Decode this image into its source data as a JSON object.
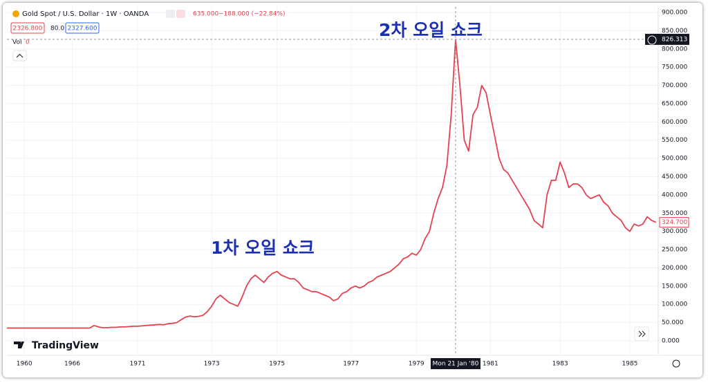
{
  "chart_data": {
    "type": "line",
    "title": "Gold Spot / U.S. Dollar · 1W · OANDA",
    "change": "635.000",
    "change_detail": "−188.000 (−22.84%)",
    "bid": "2326.800",
    "spread": "80.0",
    "ask": "2327.600",
    "volume_label": "Vol",
    "volume": 0,
    "annotations": [
      "2차 오일 쇼크",
      "1차 오일 쇼크"
    ],
    "crosshair": {
      "date": "Mon 21 Jan '80",
      "price": {
        "value": 826.313,
        "label": "826.313"
      }
    },
    "logo": "TradingView",
    "color": "#e5404c",
    "grid": true,
    "last_value_label": "324.700",
    "categories": [
      null,
      null,
      null,
      null,
      "1960",
      null,
      null,
      null,
      null,
      null,
      null,
      null,
      null,
      null,
      null,
      "1966",
      null,
      null,
      null,
      null,
      null,
      null,
      null,
      null,
      null,
      null,
      null,
      null,
      null,
      null,
      "1971",
      null,
      null,
      null,
      null,
      null,
      null,
      null,
      null,
      null,
      null,
      null,
      null,
      null,
      null,
      null,
      null,
      "1973",
      null,
      null,
      null,
      null,
      null,
      null,
      null,
      null,
      null,
      null,
      null,
      null,
      null,
      null,
      "1975",
      null,
      null,
      null,
      null,
      null,
      null,
      null,
      null,
      null,
      null,
      null,
      null,
      null,
      null,
      null,
      null,
      "1977",
      null,
      null,
      null,
      null,
      null,
      null,
      null,
      null,
      null,
      null,
      null,
      null,
      null,
      null,
      "1979",
      null,
      null,
      null,
      null,
      null,
      null,
      null,
      null,
      null,
      null,
      null,
      null,
      null,
      null,
      null,
      null,
      "1981",
      null,
      null,
      null,
      null,
      null,
      null,
      null,
      null,
      null,
      null,
      null,
      null,
      null,
      null,
      null,
      "1983",
      null,
      null,
      null,
      null,
      null,
      null,
      null,
      null,
      null,
      null,
      null,
      null,
      null,
      null,
      null,
      "1985",
      null,
      null,
      null,
      null,
      null,
      null
    ],
    "values": [
      35,
      35,
      35,
      35,
      35,
      35,
      35,
      35,
      35,
      35,
      35,
      35,
      35,
      35,
      35,
      35,
      35,
      35,
      35,
      35,
      42,
      38,
      36,
      36,
      37,
      37,
      38,
      38,
      39,
      40,
      40,
      41,
      42,
      43,
      44,
      45,
      44,
      47,
      48,
      50,
      58,
      65,
      68,
      66,
      67,
      70,
      80,
      95,
      115,
      125,
      115,
      105,
      100,
      95,
      120,
      150,
      170,
      180,
      170,
      160,
      175,
      185,
      190,
      180,
      175,
      170,
      170,
      160,
      145,
      140,
      135,
      135,
      130,
      125,
      120,
      110,
      115,
      130,
      135,
      145,
      150,
      145,
      150,
      160,
      165,
      175,
      180,
      185,
      190,
      200,
      210,
      225,
      230,
      240,
      235,
      250,
      280,
      300,
      350,
      390,
      420,
      480,
      620,
      826,
      700,
      550,
      520,
      620,
      640,
      700,
      680,
      620,
      560,
      500,
      470,
      460,
      440,
      420,
      400,
      380,
      360,
      330,
      320,
      310,
      400,
      440,
      440,
      490,
      460,
      420,
      430,
      430,
      420,
      400,
      390,
      395,
      400,
      380,
      370,
      350,
      340,
      330,
      310,
      300,
      320,
      315,
      320,
      340,
      330,
      324.7
    ],
    "ylim": [
      0,
      900
    ],
    "yticks": [
      {
        "value": 0,
        "label": "0.000"
      },
      {
        "value": 50,
        "label": "50.000"
      },
      {
        "value": 100,
        "label": "100.000"
      },
      {
        "value": 150,
        "label": "150.000"
      },
      {
        "value": 200,
        "label": "200.000"
      },
      {
        "value": 250,
        "label": "250.000"
      },
      {
        "value": 300,
        "label": "300.000"
      },
      {
        "value": 350,
        "label": "350.000"
      },
      {
        "value": 400,
        "label": "400.000"
      },
      {
        "value": 450,
        "label": "450.000"
      },
      {
        "value": 500,
        "label": "500.000"
      },
      {
        "value": 550,
        "label": "550.000"
      },
      {
        "value": 600,
        "label": "600.000"
      },
      {
        "value": 650,
        "label": "650.000"
      },
      {
        "value": 700,
        "label": "700.000"
      },
      {
        "value": 750,
        "label": "750.000"
      },
      {
        "value": 800,
        "label": "800.000"
      },
      {
        "value": 850,
        "label": "850.000"
      },
      {
        "value": 900,
        "label": "900.000"
      }
    ]
  }
}
